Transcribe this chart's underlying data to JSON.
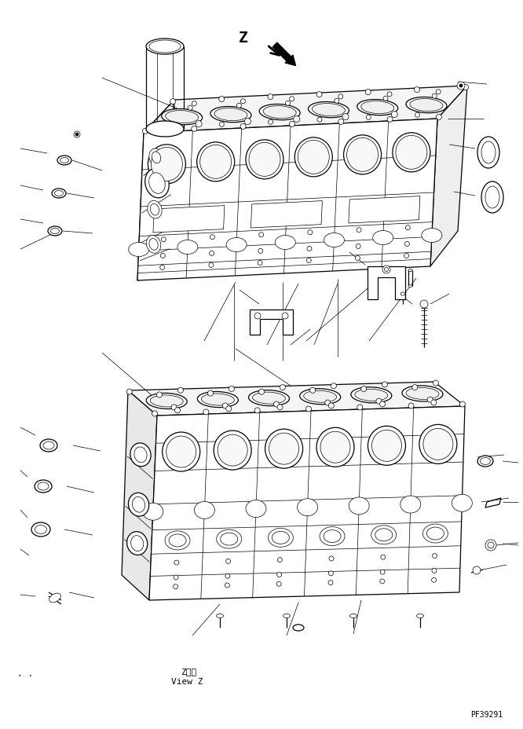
{
  "bg_color": "#ffffff",
  "line_color": "#000000",
  "fig_width": 6.66,
  "fig_height": 9.29,
  "dpi": 100,
  "bottom_text_1": "Z　視",
  "bottom_text_2": "View Z",
  "part_number": "PF39291",
  "z_label": "Z",
  "lw_main": 0.9,
  "lw_thin": 0.5,
  "lw_med": 0.7,
  "gray_top": "#eeeeee",
  "gray_side": "#e0e0e0",
  "white": "#ffffff"
}
